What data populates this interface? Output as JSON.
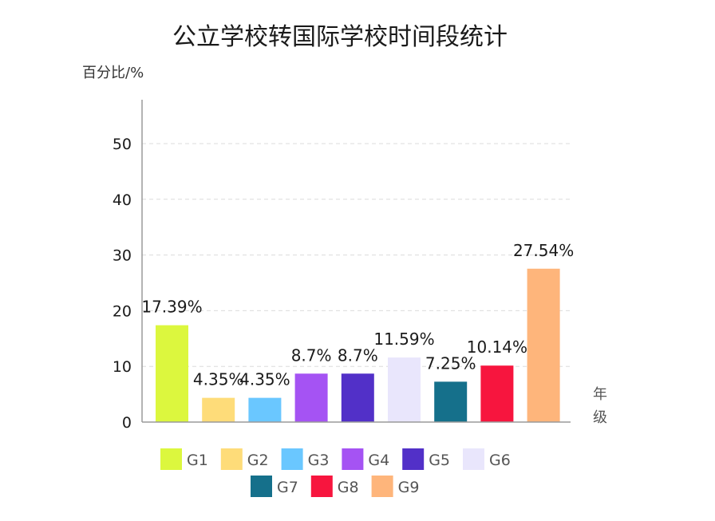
{
  "chart_data": {
    "type": "bar",
    "title": "公立学校转国际学校时间段统计",
    "ylabel": "百分比/%",
    "xlabel": "年级",
    "ylim": [
      0,
      57
    ],
    "yticks": [
      0,
      10,
      20,
      30,
      40,
      50
    ],
    "grid": true,
    "categories": [
      "G1",
      "G2",
      "G3",
      "G4",
      "G5",
      "G6",
      "G7",
      "G8",
      "G9"
    ],
    "values": [
      17.39,
      4.35,
      4.35,
      8.7,
      8.7,
      11.59,
      7.25,
      10.14,
      27.54
    ],
    "data_labels": [
      "17.39%",
      "4.35%",
      "4.35%",
      "8.7%",
      "8.7%",
      "11.59%",
      "7.25%",
      "10.14%",
      "27.54%"
    ],
    "colors": [
      "#dcf73e",
      "#fedc79",
      "#6ac7ff",
      "#a553f3",
      "#5230c8",
      "#e9e6fc",
      "#15708b",
      "#f7153e",
      "#feb57b"
    ],
    "legend_position": "bottom"
  }
}
